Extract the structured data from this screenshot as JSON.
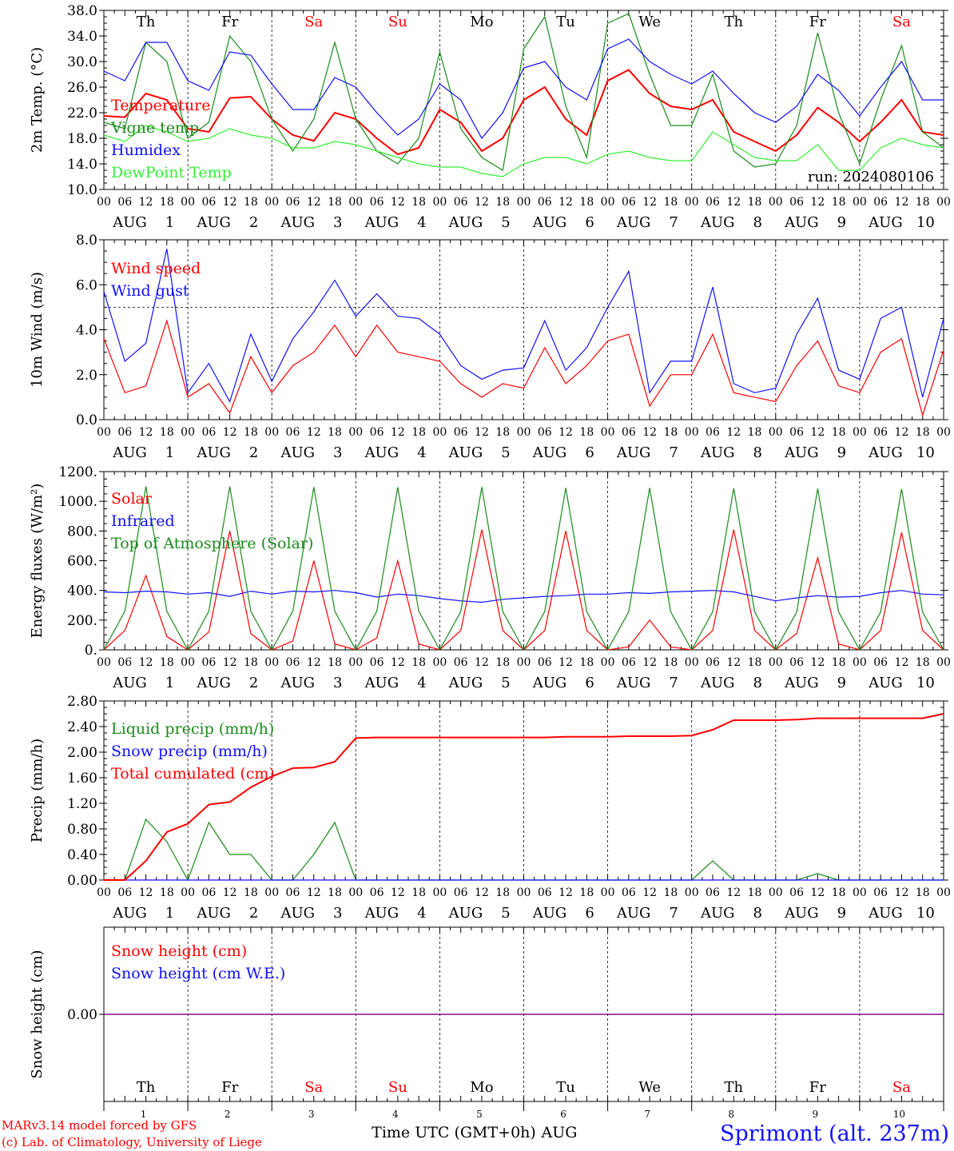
{
  "colors": {
    "red": "#ff0000",
    "green": "#1a8a1a",
    "blue": "#1010ff",
    "lightgreen": "#33ee33",
    "purple": "#800080",
    "black": "#000000"
  },
  "x_axis": {
    "hour_ticks": [
      "00",
      "06",
      "12",
      "18"
    ],
    "month": "AUG",
    "dates": [
      "1",
      "2",
      "3",
      "4",
      "5",
      "6",
      "7",
      "8",
      "9",
      "10"
    ],
    "weekdays": [
      "Th",
      "Fr",
      "Sa",
      "Su",
      "Mo",
      "Tu",
      "We",
      "Th",
      "Fr",
      "Sa"
    ],
    "weekend_flags": [
      false,
      false,
      true,
      true,
      false,
      false,
      false,
      false,
      false,
      true
    ],
    "final_tick": "00",
    "time_label": "Time UTC (GMT+0h)",
    "time_label_month": "AUG"
  },
  "footer": {
    "model_line1": "MARv3.14 model forced by GFS",
    "model_line2": "(c) Lab. of Climatology, University of Liege",
    "station": "Sprimont (alt. 237m)"
  },
  "chart_data": [
    {
      "type": "line",
      "id": "temperature",
      "ylabel": "2m Temp. (°C)",
      "ylim": [
        10,
        38
      ],
      "yticks": [
        "10.0",
        "14.0",
        "18.0",
        "22.0",
        "26.0",
        "30.0",
        "34.0",
        "38.0"
      ],
      "annotation": "run: 2024080106",
      "x": [
        0,
        6,
        12,
        18,
        24,
        30,
        36,
        42,
        48,
        54,
        60,
        66,
        72,
        78,
        84,
        90,
        96,
        102,
        108,
        114,
        120,
        126,
        132,
        138,
        144,
        150,
        156,
        162,
        168,
        174,
        180,
        186,
        192,
        198,
        204,
        210,
        216,
        222,
        228,
        234,
        240
      ],
      "series": [
        {
          "name": "Temperature",
          "color": "#ff0000",
          "values": [
            21.5,
            21.3,
            25.0,
            24.0,
            19.5,
            19.0,
            24.3,
            24.5,
            21.0,
            18.5,
            17.6,
            22.0,
            21.0,
            18.0,
            15.5,
            16.5,
            22.5,
            20.5,
            16.0,
            18.0,
            24.0,
            26.0,
            21.0,
            18.5,
            27.0,
            28.7,
            25.0,
            23.0,
            22.5,
            24.0,
            19.0,
            17.5,
            16.0,
            18.5,
            22.8,
            20.5,
            17.5,
            20.5,
            24.0,
            19.0,
            18.5
          ]
        },
        {
          "name": "Vigne temp",
          "color": "#1a8a1a",
          "values": [
            20.5,
            19.5,
            33.0,
            30.0,
            18.0,
            20.5,
            34.0,
            30.0,
            21.0,
            16.0,
            21.0,
            33.0,
            21.0,
            16.0,
            14.0,
            18.0,
            31.5,
            19.5,
            15.0,
            13.0,
            32.0,
            37.0,
            23.0,
            15.0,
            36.0,
            37.5,
            28.0,
            20.0,
            20.0,
            28.0,
            16.0,
            13.5,
            14.0,
            20.0,
            34.5,
            22.0,
            14.0,
            24.0,
            32.5,
            19.0,
            16.5
          ]
        },
        {
          "name": "Humidex",
          "color": "#1010ff",
          "values": [
            28.5,
            27.0,
            33.0,
            33.0,
            27.0,
            25.5,
            31.5,
            31.0,
            26.5,
            22.5,
            22.5,
            27.5,
            26.0,
            22.0,
            18.5,
            21.0,
            26.5,
            24.0,
            18.0,
            22.0,
            29.0,
            30.0,
            26.0,
            24.0,
            32.0,
            33.5,
            30.0,
            28.0,
            26.5,
            28.5,
            25.0,
            22.0,
            20.5,
            23.0,
            28.0,
            25.5,
            21.5,
            26.0,
            30.0,
            24.0,
            24.0
          ]
        },
        {
          "name": "DewPoint Temp",
          "color": "#33ee33",
          "values": [
            18.5,
            17.5,
            20.0,
            19.0,
            17.5,
            18.0,
            19.5,
            18.5,
            18.0,
            16.5,
            16.5,
            17.5,
            17.0,
            16.0,
            15.0,
            14.0,
            13.5,
            13.5,
            12.5,
            12.0,
            14.0,
            15.0,
            15.0,
            14.0,
            15.5,
            16.0,
            15.0,
            14.5,
            14.5,
            19.0,
            17.0,
            15.0,
            14.5,
            14.5,
            17.0,
            13.0,
            13.0,
            16.5,
            18.0,
            17.0,
            16.5
          ]
        }
      ]
    },
    {
      "type": "line",
      "id": "wind",
      "ylabel": "10m Wind (m/s)",
      "ylim": [
        0,
        8
      ],
      "yticks": [
        "0.0",
        "2.0",
        "4.0",
        "6.0",
        "8.0"
      ],
      "reference_line": 5.0,
      "x": [
        0,
        6,
        12,
        18,
        24,
        30,
        36,
        42,
        48,
        54,
        60,
        66,
        72,
        78,
        84,
        90,
        96,
        102,
        108,
        114,
        120,
        126,
        132,
        138,
        144,
        150,
        156,
        162,
        168,
        174,
        180,
        186,
        192,
        198,
        204,
        210,
        216,
        222,
        228,
        234,
        240
      ],
      "series": [
        {
          "name": "Wind speed",
          "color": "#ff0000",
          "values": [
            3.6,
            1.2,
            1.5,
            4.4,
            1.0,
            1.6,
            0.3,
            2.8,
            1.2,
            2.4,
            3.0,
            4.2,
            2.8,
            4.2,
            3.0,
            2.8,
            2.6,
            1.6,
            1.0,
            1.6,
            1.4,
            3.2,
            1.6,
            2.4,
            3.5,
            3.8,
            0.6,
            2.0,
            2.0,
            3.8,
            1.2,
            1.0,
            0.8,
            2.4,
            3.5,
            1.5,
            1.2,
            3.0,
            3.6,
            0.2,
            3.1
          ]
        },
        {
          "name": "Wind gust",
          "color": "#1010ff",
          "values": [
            5.7,
            2.6,
            3.4,
            7.6,
            1.2,
            2.5,
            0.8,
            3.8,
            1.7,
            3.6,
            4.8,
            6.2,
            4.6,
            5.6,
            4.6,
            4.5,
            3.8,
            2.4,
            1.8,
            2.2,
            2.3,
            4.4,
            2.2,
            3.2,
            5.0,
            6.6,
            1.2,
            2.6,
            2.6,
            5.9,
            1.6,
            1.2,
            1.4,
            3.8,
            5.4,
            2.2,
            1.8,
            4.5,
            5.0,
            1.0,
            4.5
          ]
        }
      ]
    },
    {
      "type": "line",
      "id": "energy",
      "ylabel": "Energy fluxes (W/m²)",
      "ylim": [
        0,
        1200
      ],
      "yticks": [
        "0.",
        "200.",
        "400.",
        "600.",
        "800.",
        "1000.",
        "1200."
      ],
      "x": [
        0,
        6,
        12,
        18,
        24,
        30,
        36,
        42,
        48,
        54,
        60,
        66,
        72,
        78,
        84,
        90,
        96,
        102,
        108,
        114,
        120,
        126,
        132,
        138,
        144,
        150,
        156,
        162,
        168,
        174,
        180,
        186,
        192,
        198,
        204,
        210,
        216,
        222,
        228,
        234,
        240
      ],
      "series": [
        {
          "name": "Solar",
          "color": "#ff0000",
          "values": [
            0,
            130,
            500,
            90,
            0,
            120,
            800,
            110,
            0,
            60,
            600,
            40,
            0,
            80,
            600,
            40,
            0,
            130,
            810,
            130,
            0,
            130,
            800,
            130,
            0,
            20,
            200,
            20,
            0,
            130,
            810,
            130,
            0,
            110,
            620,
            40,
            0,
            130,
            790,
            130,
            0
          ]
        },
        {
          "name": "Infrared",
          "color": "#1010ff",
          "values": [
            390,
            385,
            395,
            390,
            375,
            385,
            360,
            395,
            375,
            395,
            390,
            400,
            385,
            355,
            375,
            365,
            345,
            330,
            320,
            340,
            350,
            360,
            365,
            375,
            375,
            385,
            380,
            390,
            395,
            400,
            390,
            360,
            330,
            350,
            365,
            355,
            360,
            385,
            400,
            375,
            370
          ]
        },
        {
          "name": "Top of Atmosphere (Solar)",
          "color": "#1a8a1a",
          "values": [
            0,
            260,
            1100,
            260,
            0,
            260,
            1100,
            260,
            0,
            260,
            1095,
            260,
            0,
            260,
            1095,
            260,
            0,
            258,
            1095,
            258,
            0,
            258,
            1090,
            258,
            0,
            256,
            1090,
            256,
            0,
            256,
            1088,
            256,
            0,
            254,
            1085,
            254,
            0,
            254,
            1082,
            254,
            0
          ]
        }
      ]
    },
    {
      "type": "line",
      "id": "precip",
      "ylabel": "Precip (mm/h)",
      "ylim": [
        0,
        2.8
      ],
      "yticks": [
        "0.00",
        "0.40",
        "0.80",
        "1.20",
        "1.60",
        "2.00",
        "2.40",
        "2.80"
      ],
      "x": [
        0,
        6,
        12,
        18,
        24,
        30,
        36,
        42,
        48,
        54,
        60,
        66,
        72,
        78,
        84,
        90,
        96,
        102,
        108,
        114,
        120,
        126,
        132,
        138,
        144,
        150,
        156,
        162,
        168,
        174,
        180,
        186,
        192,
        198,
        204,
        210,
        216,
        222,
        228,
        234,
        240
      ],
      "series": [
        {
          "name": "Liquid precip (mm/h)",
          "color": "#1a8a1a",
          "values": [
            0.0,
            0.0,
            0.95,
            0.6,
            0.0,
            0.9,
            0.4,
            0.4,
            0.0,
            0.0,
            0.4,
            0.9,
            0.0,
            0.0,
            0.0,
            0.0,
            0.0,
            0.0,
            0.0,
            0.0,
            0.0,
            0.0,
            0.0,
            0.0,
            0.0,
            0.0,
            0.0,
            0.0,
            0.0,
            0.3,
            0.0,
            0.0,
            0.0,
            0.0,
            0.1,
            0.0,
            0.0,
            0.0,
            0.0,
            0.0,
            0.0
          ]
        },
        {
          "name": "Snow precip (mm/h)",
          "color": "#1010ff",
          "values": [
            0,
            0,
            0,
            0,
            0,
            0,
            0,
            0,
            0,
            0,
            0,
            0,
            0,
            0,
            0,
            0,
            0,
            0,
            0,
            0,
            0,
            0,
            0,
            0,
            0,
            0,
            0,
            0,
            0,
            0,
            0,
            0,
            0,
            0,
            0,
            0,
            0,
            0,
            0,
            0,
            0
          ]
        },
        {
          "name": "Total cumulated (cm)",
          "color": "#ff0000",
          "values": [
            0.0,
            0.0,
            0.3,
            0.75,
            0.88,
            1.18,
            1.22,
            1.45,
            1.62,
            1.75,
            1.76,
            1.85,
            2.22,
            2.23,
            2.23,
            2.23,
            2.23,
            2.23,
            2.23,
            2.23,
            2.23,
            2.23,
            2.24,
            2.24,
            2.24,
            2.25,
            2.25,
            2.25,
            2.26,
            2.35,
            2.5,
            2.5,
            2.5,
            2.51,
            2.53,
            2.53,
            2.53,
            2.53,
            2.53,
            2.53,
            2.6
          ]
        }
      ]
    },
    {
      "type": "line",
      "id": "snow",
      "ylabel": "Snow height (cm)",
      "ylim": [
        -0.5,
        0.5
      ],
      "yticks": [
        "0.00"
      ],
      "x": [
        0,
        240
      ],
      "series": [
        {
          "name": "Snow height (cm)",
          "color": "#ff0000",
          "values": [
            0.0,
            0.0
          ]
        },
        {
          "name": "Snow height (cm W.E.)",
          "color": "#1010ff",
          "values": [
            0.0,
            0.0
          ]
        }
      ]
    }
  ]
}
